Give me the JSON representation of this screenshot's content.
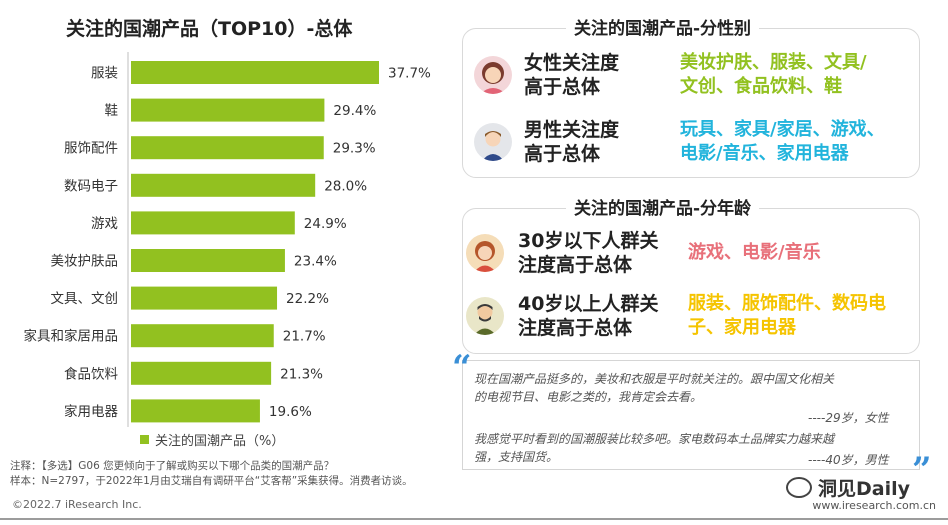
{
  "chart_data": {
    "type": "bar",
    "orientation": "horizontal",
    "title": "关注的国潮产品（TOP10）-总体",
    "categories": [
      "服装",
      "鞋",
      "服饰配件",
      "数码电子",
      "游戏",
      "美妆护肤品",
      "文具、文创",
      "家具和家居用品",
      "食品饮料",
      "家用电器"
    ],
    "values": [
      37.7,
      29.4,
      29.3,
      28.0,
      24.9,
      23.4,
      22.2,
      21.7,
      21.3,
      19.6
    ],
    "value_labels": [
      "37.7%",
      "29.4%",
      "29.3%",
      "28.0%",
      "24.9%",
      "23.4%",
      "22.2%",
      "21.7%",
      "21.3%",
      "19.6%"
    ],
    "series": [
      {
        "name": "关注的国潮产品（%）"
      }
    ],
    "legend_position": "bottom",
    "color": "#92c120",
    "grid": false
  },
  "gender_panel": {
    "title": "关注的国潮产品-分性别",
    "rows": [
      {
        "label_line1": "女性关注度",
        "label_line2": "高于总体",
        "value_line1": "美妆护肤、服装、文具/",
        "value_line2": "文创、食品饮料、鞋",
        "color": "#92c120",
        "icon": "female-avatar-icon"
      },
      {
        "label_line1": "男性关注度",
        "label_line2": "高于总体",
        "value_line1": "玩具、家具/家居、游戏、",
        "value_line2": "电影/音乐、家用电器",
        "color": "#22b4dc",
        "icon": "male-avatar-icon"
      }
    ]
  },
  "age_panel": {
    "title": "关注的国潮产品-分年龄",
    "rows": [
      {
        "label_line1": "30岁以下人群关",
        "label_line2": "注度高于总体",
        "value_line1": "游戏、电影/音乐",
        "value_line2": "",
        "color": "#e8707a",
        "icon": "young-person-icon"
      },
      {
        "label_line1": "40岁以上人群关",
        "label_line2": "注度高于总体",
        "value_line1": "服装、服饰配件、数码电",
        "value_line2": "子、家用电器",
        "color": "#f5c400",
        "icon": "older-person-icon"
      }
    ]
  },
  "quotes": {
    "q1_line1": "现在国潮产品挺多的，美妆和衣服是平时就关注的。跟中国文化相关",
    "q1_line2": "的电视节目、电影之类的，我肯定会去看。",
    "q1_author": "----29岁，女性",
    "q2_line1": "我感觉平时看到的国潮服装比较多吧。家电数码本土品牌实力越来越",
    "q2_line2": "强，支持国货。",
    "q2_author": "----40岁，男性"
  },
  "notes": {
    "line1": "注释：【多选】G06  您更倾向于了解或购买以下哪个品类的国潮产品？",
    "line2": "样本：N=2797，于2022年1月由艾瑞自有调研平台“艾客帮”采集获得。消费者访谈。"
  },
  "footer": {
    "copyright": "©2022.7 iResearch Inc.",
    "site": "www.iresearch.com.cn",
    "watermark": "洞见Daily"
  }
}
